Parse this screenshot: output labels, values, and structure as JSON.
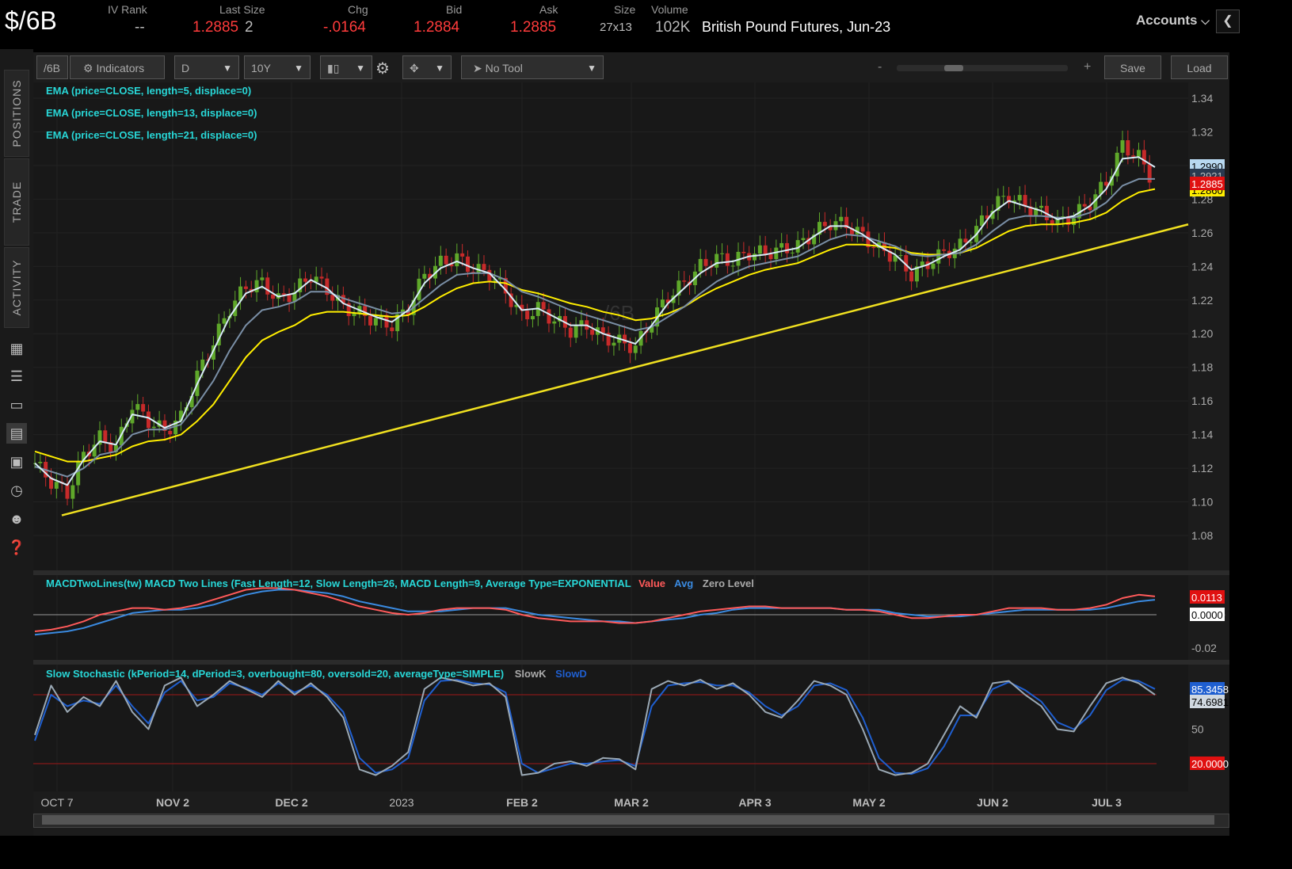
{
  "symbol": "$/6B",
  "quote": {
    "iv_rank_label": "IV Rank",
    "iv_rank": "--",
    "last_size_label": "Last Size",
    "last": "1.2885",
    "size_qty": "2",
    "chg_label": "Chg",
    "chg": "-.0164",
    "bid_label": "Bid",
    "bid": "1.2884",
    "ask_label": "Ask",
    "ask": "1.2885",
    "size_label": "Size",
    "size": "27x13",
    "volume_label": "Volume",
    "volume": "102K",
    "description": "British Pound Futures, Jun-23"
  },
  "accounts_label": "Accounts",
  "side_tabs": [
    "POSITIONS",
    "TRADE",
    "ACTIVITY"
  ],
  "side_icons": [
    "report-icon",
    "list-icon",
    "tv-icon",
    "chart-icon",
    "grid-icon",
    "clock-icon",
    "people-icon",
    "help-icon"
  ],
  "toolbar": {
    "symbol": "/6B",
    "indicators": "Indicators",
    "aggregation": "D",
    "timeframe": "10Y",
    "tool": "No Tool",
    "zoom_minus": "-",
    "zoom_plus": "+",
    "save": "Save",
    "load": "Load"
  },
  "price_panel": {
    "watermark": "/6B",
    "studies": [
      "EMA (price=CLOSE, length=5, displace=0)",
      "EMA (price=CLOSE, length=13, displace=0)",
      "EMA (price=CLOSE, length=21, displace=0)"
    ],
    "price_labels": [
      {
        "value": "1.2990",
        "bg": "#b8d8f0",
        "fg": "#000"
      },
      {
        "value": "1.2921",
        "bg": "#2a3a50",
        "fg": "#bbb"
      },
      {
        "value": "1.2885",
        "bg": "#e01010",
        "fg": "#fff"
      },
      {
        "value": "1.2860",
        "bg": "#ffee00",
        "fg": "#000"
      }
    ]
  },
  "macd_panel": {
    "title": "MACDTwoLines(tw) MACD Two Lines (Fast Length=12, Slow Length=26, MACD Length=9, Average Type=EXPONENTIAL",
    "legend": [
      {
        "label": "Value",
        "color": "#ff5a5a"
      },
      {
        "label": "Avg",
        "color": "#3a8ae0"
      },
      {
        "label": "Zero Level",
        "color": "#aaaaaa"
      }
    ],
    "labels": [
      {
        "value": "0.0113",
        "bg": "#e01010",
        "fg": "#fff"
      },
      {
        "value": "0.0000",
        "bg": "#ffffff",
        "fg": "#000"
      }
    ]
  },
  "stoch_panel": {
    "title": "Slow Stochastic (kPeriod=14, dPeriod=3, overbought=80, oversold=20, averageType=SIMPLE)",
    "legend": [
      {
        "label": "SlowK",
        "color": "#aaaaaa"
      },
      {
        "label": "SlowD",
        "color": "#1f5fd0"
      }
    ],
    "labels": [
      {
        "value": "85.3458",
        "bg": "#1f5fd0",
        "fg": "#fff"
      },
      {
        "value": "74.6981",
        "bg": "#d0d8e0",
        "fg": "#000"
      },
      {
        "value": "20.0000",
        "bg": "#e01010",
        "fg": "#fff"
      }
    ]
  },
  "chart_data": {
    "type": "candlestick",
    "price_ticks": [
      "1.34",
      "1.32",
      "1.30",
      "1.28",
      "1.26",
      "1.24",
      "1.22",
      "1.20",
      "1.18",
      "1.16",
      "1.14",
      "1.12",
      "1.10",
      "1.08"
    ],
    "price_tick_values": [
      1.34,
      1.32,
      1.3,
      1.28,
      1.26,
      1.24,
      1.22,
      1.2,
      1.18,
      1.16,
      1.14,
      1.12,
      1.1,
      1.08
    ],
    "x_labels": [
      "OCT 7",
      "NOV 2",
      "DEC 2",
      "2023",
      "FEB 2",
      "MAR 2",
      "APR 3",
      "MAY 2",
      "JUN 2",
      "JUL 3"
    ],
    "macd_ticks": [
      "0.0000",
      "-0.02"
    ],
    "macd_tick_values": [
      0.0,
      -0.02
    ],
    "stoch_ticks": [
      "50"
    ],
    "stoch_tick_values": [
      50
    ],
    "close_path": [
      1.123,
      1.112,
      1.105,
      1.128,
      1.138,
      1.132,
      1.158,
      1.148,
      1.142,
      1.15,
      1.175,
      1.195,
      1.215,
      1.228,
      1.23,
      1.22,
      1.225,
      1.235,
      1.226,
      1.216,
      1.212,
      1.208,
      1.205,
      1.215,
      1.235,
      1.242,
      1.245,
      1.238,
      1.236,
      1.225,
      1.21,
      1.215,
      1.208,
      1.202,
      1.205,
      1.198,
      1.195,
      1.192,
      1.208,
      1.222,
      1.23,
      1.24,
      1.245,
      1.243,
      1.248,
      1.248,
      1.25,
      1.252,
      1.26,
      1.266,
      1.265,
      1.258,
      1.25,
      1.246,
      1.235,
      1.242,
      1.248,
      1.252,
      1.262,
      1.276,
      1.282,
      1.276,
      1.272,
      1.266,
      1.27,
      1.278,
      1.29,
      1.312,
      1.305,
      1.289
    ],
    "ema5": [
      1.123,
      1.114,
      1.11,
      1.125,
      1.136,
      1.134,
      1.152,
      1.15,
      1.144,
      1.148,
      1.17,
      1.19,
      1.21,
      1.224,
      1.228,
      1.222,
      1.224,
      1.232,
      1.227,
      1.218,
      1.214,
      1.21,
      1.207,
      1.214,
      1.23,
      1.239,
      1.243,
      1.239,
      1.236,
      1.226,
      1.214,
      1.215,
      1.21,
      1.205,
      1.205,
      1.2,
      1.197,
      1.194,
      1.205,
      1.218,
      1.227,
      1.236,
      1.242,
      1.243,
      1.246,
      1.247,
      1.249,
      1.251,
      1.258,
      1.264,
      1.264,
      1.259,
      1.252,
      1.247,
      1.238,
      1.241,
      1.246,
      1.25,
      1.259,
      1.272,
      1.279,
      1.276,
      1.273,
      1.268,
      1.27,
      1.276,
      1.286,
      1.304,
      1.305,
      1.299
    ],
    "ema13": [
      1.121,
      1.118,
      1.115,
      1.12,
      1.128,
      1.13,
      1.14,
      1.143,
      1.143,
      1.146,
      1.158,
      1.172,
      1.19,
      1.205,
      1.214,
      1.216,
      1.219,
      1.225,
      1.225,
      1.221,
      1.218,
      1.215,
      1.212,
      1.213,
      1.221,
      1.229,
      1.235,
      1.236,
      1.236,
      1.232,
      1.225,
      1.222,
      1.218,
      1.214,
      1.211,
      1.208,
      1.205,
      1.202,
      1.204,
      1.21,
      1.216,
      1.224,
      1.231,
      1.236,
      1.24,
      1.242,
      1.244,
      1.246,
      1.251,
      1.256,
      1.259,
      1.258,
      1.255,
      1.252,
      1.247,
      1.246,
      1.247,
      1.248,
      1.253,
      1.261,
      1.268,
      1.27,
      1.27,
      1.269,
      1.269,
      1.272,
      1.278,
      1.288,
      1.292,
      1.292
    ],
    "ema21": [
      1.13,
      1.127,
      1.124,
      1.124,
      1.126,
      1.128,
      1.133,
      1.136,
      1.137,
      1.14,
      1.148,
      1.158,
      1.172,
      1.186,
      1.196,
      1.201,
      1.205,
      1.211,
      1.213,
      1.213,
      1.212,
      1.211,
      1.21,
      1.211,
      1.216,
      1.222,
      1.227,
      1.23,
      1.231,
      1.23,
      1.226,
      1.224,
      1.221,
      1.218,
      1.216,
      1.213,
      1.211,
      1.208,
      1.209,
      1.212,
      1.216,
      1.222,
      1.227,
      1.231,
      1.235,
      1.238,
      1.24,
      1.242,
      1.246,
      1.25,
      1.253,
      1.253,
      1.252,
      1.251,
      1.248,
      1.247,
      1.247,
      1.248,
      1.251,
      1.256,
      1.261,
      1.264,
      1.265,
      1.265,
      1.266,
      1.268,
      1.272,
      1.279,
      1.284,
      1.286
    ],
    "trendline": {
      "start": 1.092,
      "end": 1.265
    },
    "macd_value": [
      -0.01,
      -0.009,
      -0.007,
      -0.004,
      0.0,
      0.002,
      0.004,
      0.004,
      0.003,
      0.004,
      0.006,
      0.009,
      0.012,
      0.015,
      0.016,
      0.016,
      0.015,
      0.013,
      0.011,
      0.008,
      0.005,
      0.003,
      0.001,
      0.0,
      0.001,
      0.003,
      0.004,
      0.004,
      0.004,
      0.003,
      0.0,
      -0.002,
      -0.003,
      -0.004,
      -0.004,
      -0.004,
      -0.005,
      -0.005,
      -0.004,
      -0.002,
      0.0,
      0.002,
      0.003,
      0.004,
      0.005,
      0.005,
      0.004,
      0.004,
      0.004,
      0.004,
      0.003,
      0.003,
      0.002,
      0.0,
      -0.002,
      -0.002,
      -0.001,
      0.0,
      0.0,
      0.002,
      0.004,
      0.004,
      0.004,
      0.003,
      0.003,
      0.004,
      0.006,
      0.01,
      0.012,
      0.011
    ],
    "macd_avg": [
      -0.012,
      -0.011,
      -0.01,
      -0.008,
      -0.005,
      -0.002,
      0.001,
      0.002,
      0.003,
      0.003,
      0.004,
      0.006,
      0.009,
      0.012,
      0.014,
      0.015,
      0.015,
      0.014,
      0.013,
      0.011,
      0.008,
      0.006,
      0.004,
      0.002,
      0.002,
      0.002,
      0.003,
      0.004,
      0.004,
      0.004,
      0.002,
      0.0,
      -0.001,
      -0.002,
      -0.003,
      -0.004,
      -0.004,
      -0.005,
      -0.004,
      -0.003,
      -0.002,
      0.0,
      0.001,
      0.003,
      0.004,
      0.004,
      0.004,
      0.004,
      0.004,
      0.004,
      0.003,
      0.003,
      0.003,
      0.001,
      0.0,
      -0.001,
      -0.001,
      -0.001,
      0.0,
      0.001,
      0.002,
      0.003,
      0.003,
      0.003,
      0.003,
      0.003,
      0.004,
      0.006,
      0.008,
      0.009
    ],
    "stoch_k": [
      45,
      88,
      65,
      78,
      70,
      92,
      65,
      50,
      88,
      95,
      70,
      80,
      92,
      85,
      78,
      92,
      80,
      90,
      78,
      60,
      15,
      10,
      18,
      30,
      85,
      95,
      92,
      88,
      90,
      78,
      10,
      12,
      20,
      22,
      18,
      25,
      24,
      15,
      85,
      92,
      88,
      93,
      85,
      90,
      80,
      65,
      60,
      75,
      92,
      88,
      80,
      50,
      15,
      10,
      12,
      20,
      45,
      70,
      60,
      90,
      92,
      80,
      70,
      50,
      48,
      70,
      90,
      95,
      90,
      80
    ],
    "stoch_d": [
      40,
      80,
      70,
      75,
      72,
      88,
      70,
      55,
      82,
      92,
      75,
      78,
      90,
      86,
      80,
      90,
      82,
      88,
      80,
      65,
      25,
      12,
      15,
      25,
      75,
      92,
      93,
      90,
      89,
      82,
      20,
      12,
      16,
      20,
      20,
      22,
      23,
      18,
      70,
      88,
      90,
      91,
      88,
      88,
      82,
      70,
      62,
      70,
      88,
      90,
      84,
      60,
      25,
      12,
      11,
      16,
      35,
      62,
      62,
      85,
      91,
      84,
      74,
      56,
      50,
      62,
      84,
      93,
      92,
      85
    ],
    "stoch_levels": {
      "overbought": 80,
      "oversold": 20
    }
  }
}
